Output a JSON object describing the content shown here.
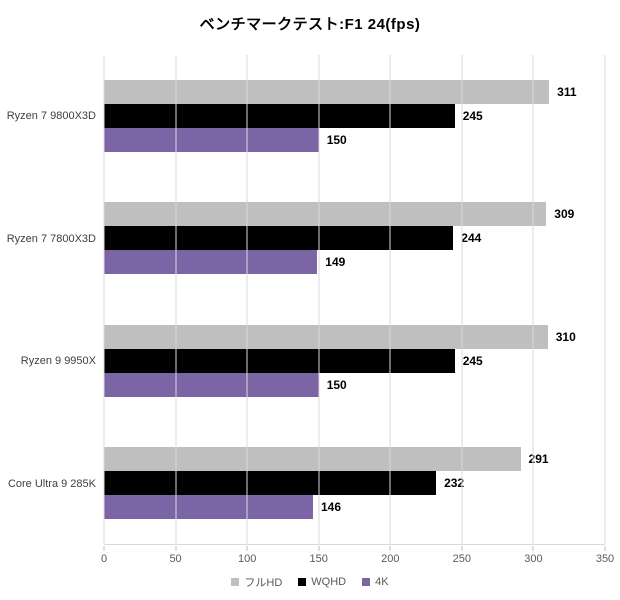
{
  "title": "ベンチマークテスト:F1 24(fps)",
  "chart_data": {
    "type": "bar",
    "orientation": "horizontal",
    "title": "ベンチマークテスト:F1 24(fps)",
    "categories": [
      "Ryzen 7 9800X3D",
      "Ryzen 7 7800X3D",
      "Ryzen 9 9950X",
      "Core Ultra 9 285K"
    ],
    "series": [
      {
        "name": "フルHD",
        "color": "#bfbfbf",
        "values": [
          311,
          309,
          310,
          291
        ]
      },
      {
        "name": "WQHD",
        "color": "#000000",
        "values": [
          245,
          244,
          245,
          232
        ]
      },
      {
        "name": "4K",
        "color": "#7c65a5",
        "values": [
          150,
          149,
          150,
          146
        ]
      }
    ],
    "xlim": [
      0,
      350
    ],
    "xtick_step": 50,
    "xtick_labels": [
      "0",
      "50",
      "100",
      "150",
      "200",
      "250",
      "300",
      "350"
    ],
    "grid": true,
    "data_labels": true,
    "legend_position": "bottom"
  },
  "style_colors": {
    "gridline": "#d9d9d9",
    "tick_mark": "#bfbfbf",
    "tick_label": "#595959",
    "category_label": "#404040",
    "legend_label": "#595959",
    "data_label": "#000000",
    "title": "#000000",
    "background": "#ffffff"
  }
}
